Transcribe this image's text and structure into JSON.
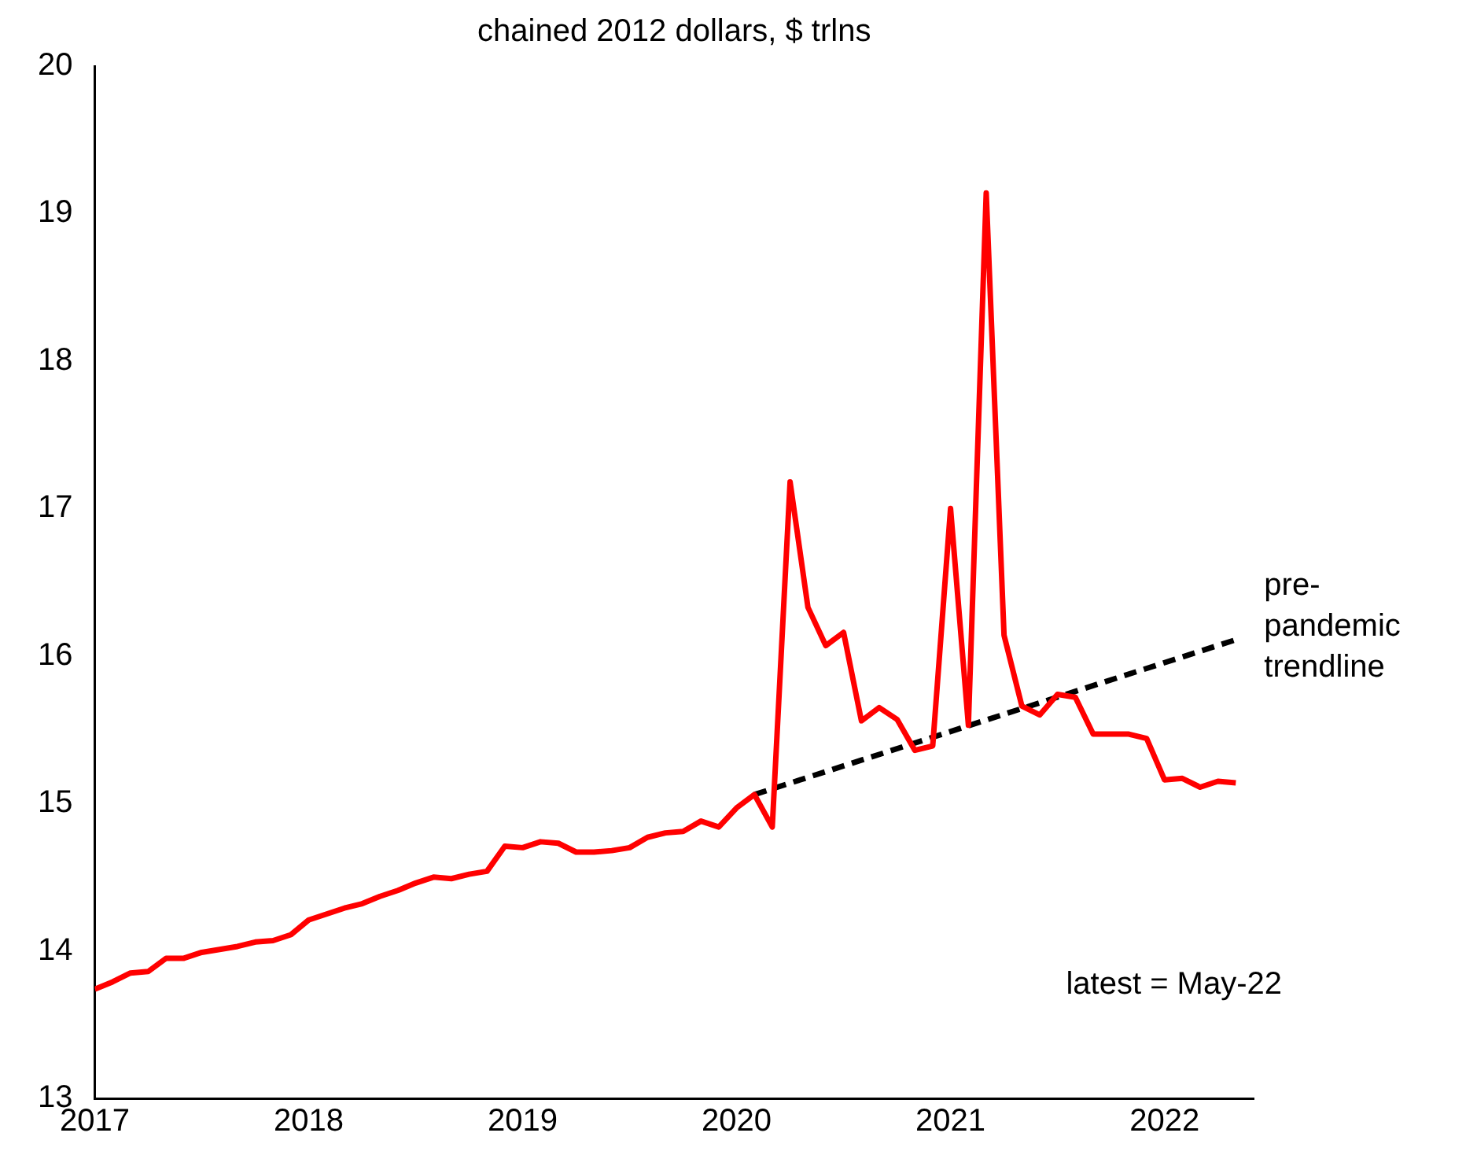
{
  "chart_data": {
    "type": "line",
    "title": "chained 2012 dollars, $ trlns",
    "x": [
      "2017-01",
      "2017-02",
      "2017-03",
      "2017-04",
      "2017-05",
      "2017-06",
      "2017-07",
      "2017-08",
      "2017-09",
      "2017-10",
      "2017-11",
      "2017-12",
      "2018-01",
      "2018-02",
      "2018-03",
      "2018-04",
      "2018-05",
      "2018-06",
      "2018-07",
      "2018-08",
      "2018-09",
      "2018-10",
      "2018-11",
      "2018-12",
      "2019-01",
      "2019-02",
      "2019-03",
      "2019-04",
      "2019-05",
      "2019-06",
      "2019-07",
      "2019-08",
      "2019-09",
      "2019-10",
      "2019-11",
      "2019-12",
      "2020-01",
      "2020-02",
      "2020-03",
      "2020-04",
      "2020-05",
      "2020-06",
      "2020-07",
      "2020-08",
      "2020-09",
      "2020-10",
      "2020-11",
      "2020-12",
      "2021-01",
      "2021-02",
      "2021-03",
      "2021-04",
      "2021-05",
      "2021-06",
      "2021-07",
      "2021-08",
      "2021-09",
      "2021-10",
      "2021-11",
      "2021-12",
      "2022-01",
      "2022-02",
      "2022-03",
      "2022-04",
      "2022-05"
    ],
    "series": [
      {
        "color": "#ff0000",
        "line_style": "solid",
        "values": [
          13.74,
          13.79,
          13.85,
          13.86,
          13.95,
          13.95,
          13.99,
          14.01,
          14.03,
          14.06,
          14.07,
          14.11,
          14.21,
          14.25,
          14.29,
          14.32,
          14.37,
          14.41,
          14.46,
          14.5,
          14.49,
          14.52,
          14.54,
          14.71,
          14.7,
          14.74,
          14.73,
          14.67,
          14.67,
          14.68,
          14.7,
          14.77,
          14.8,
          14.81,
          14.88,
          14.84,
          14.97,
          15.06,
          14.84,
          17.18,
          16.33,
          16.07,
          16.16,
          15.56,
          15.65,
          15.57,
          15.36,
          15.39,
          17.0,
          15.53,
          19.14,
          16.14,
          15.66,
          15.6,
          15.74,
          15.72,
          15.47,
          15.47,
          15.47,
          15.44,
          15.16,
          15.17,
          15.11,
          15.15,
          15.14
        ]
      },
      {
        "type": "line",
        "color": "#000000",
        "line_style": "dashed",
        "x": [
          "2020-02",
          "2022-05"
        ],
        "values": [
          15.06,
          16.11
        ]
      }
    ],
    "xlim": [
      "2017-01",
      "2022-06"
    ],
    "xticks": [
      "2017",
      "2018",
      "2019",
      "2020",
      "2021",
      "2022"
    ],
    "ylim": [
      13,
      20
    ],
    "yticks": [
      13,
      14,
      15,
      16,
      17,
      18,
      19,
      20
    ],
    "grid": false,
    "legend": false,
    "marker": "none",
    "annotations": [
      "pre-\npandemic\ntrendline",
      "latest = May-22"
    ]
  }
}
